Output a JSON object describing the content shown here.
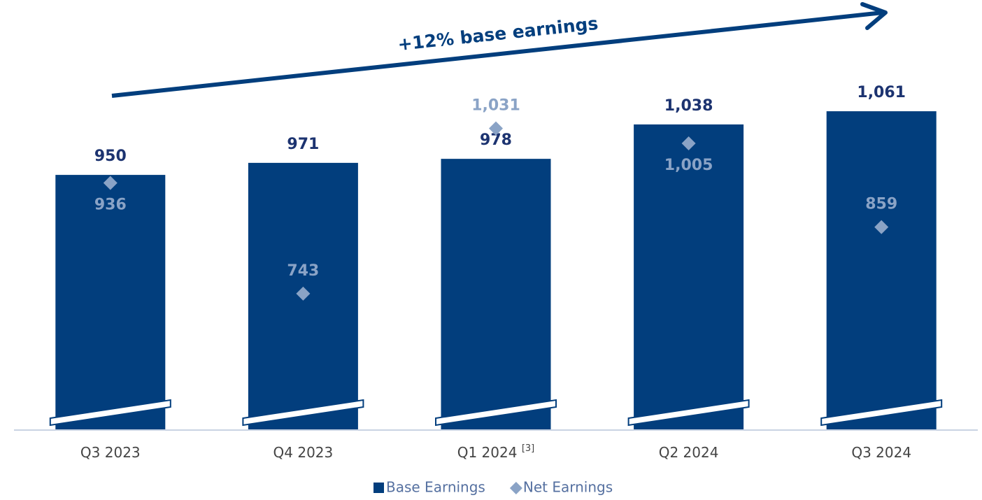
{
  "chart_data": {
    "type": "bar",
    "annotation": "+12% base earnings",
    "categories": [
      "Q3 2023",
      "Q4 2023",
      "Q1 2024",
      "Q2 2024",
      "Q3 2024"
    ],
    "category_footnotes": [
      null,
      null,
      "[3]",
      null,
      null
    ],
    "ylim": [
      505,
      1255
    ],
    "legend": "bottom",
    "series": [
      {
        "name": "Base Earnings",
        "type": "bar",
        "color": "#023e7d",
        "values": [
          950,
          971,
          978,
          1038,
          1061
        ],
        "value_labels": [
          "950",
          "971",
          "978",
          "1,038",
          "1,061"
        ]
      },
      {
        "name": "Net Earnings",
        "type": "scatter",
        "marker": "diamond",
        "color": "#8aa3c6",
        "values": [
          936,
          743,
          1031,
          1005,
          859
        ],
        "value_labels": [
          "936",
          "743",
          "1,031",
          "1,005",
          "859"
        ]
      }
    ]
  }
}
